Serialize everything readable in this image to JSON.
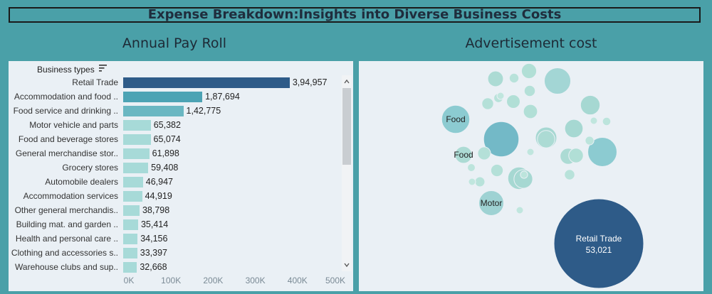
{
  "header": {
    "title": "Expense Breakdown:Insights into Diverse Business Costs"
  },
  "payroll": {
    "title": "Annual Pay Roll",
    "column_header": "Business types",
    "chart_data": {
      "type": "bar",
      "title": "Annual Pay Roll",
      "categories": [
        "Retail Trade",
        "Accommodation and food ..",
        "Food service and drinking ..",
        "Motor vehicle and parts",
        "Food and beverage stores",
        "General merchandise stor..",
        "Grocery stores",
        "Automobile dealers",
        "Accommodation services",
        "Other general merchandis..",
        "Building mat. and garden ..",
        "Health and personal care ..",
        "Clothing and accessories s..",
        "Warehouse clubs and sup.."
      ],
      "values": [
        394957,
        187694,
        142775,
        65382,
        65074,
        61898,
        59408,
        46947,
        44919,
        38798,
        35414,
        34156,
        33397,
        32668
      ],
      "labels": [
        "3,94,957",
        "1,87,694",
        "1,42,775",
        "65,382",
        "65,074",
        "61,898",
        "59,408",
        "46,947",
        "44,919",
        "38,798",
        "35,414",
        "34,156",
        "33,397",
        "32,668"
      ],
      "xlim": [
        0,
        500000
      ],
      "ticks": [
        "0K",
        "100K",
        "200K",
        "300K",
        "400K",
        "500K"
      ],
      "colors": [
        "#2e5b88",
        "#4ca3b4",
        "#6ab7c2",
        "#a7dad8"
      ]
    }
  },
  "advertisement": {
    "title": "Advertisement cost",
    "chart_data": {
      "type": "bubble",
      "title": "Advertisement cost",
      "bubbles": [
        {
          "label": "Retail Trade",
          "value_label": "53,021",
          "size": 53021,
          "color": "#2e5b88"
        },
        {
          "label": "",
          "size": 8200,
          "color": "#73b9c7"
        },
        {
          "label": "",
          "size": 5600,
          "color": "#8ccbd1"
        },
        {
          "label": "Food",
          "size": 5200,
          "color": "#8ccbd1"
        },
        {
          "label": "Motor",
          "size": 4100,
          "color": "#9ed2d3"
        },
        {
          "label": "",
          "size": 4600,
          "color": "#a3d6d5"
        },
        {
          "label": "",
          "size": 3300,
          "color": "#a6d8d2"
        },
        {
          "label": "",
          "size": 3000,
          "color": "#a6d8d2"
        },
        {
          "label": "",
          "size": 2500,
          "color": "#a6d8d2"
        },
        {
          "label": "",
          "size": 2300,
          "color": "#a6d8d2"
        },
        {
          "label": "",
          "size": 2200,
          "color": "#a6d8d2"
        },
        {
          "label": "",
          "size": 2000,
          "color": "#acdbd4"
        },
        {
          "label": "Food",
          "size": 1900,
          "color": "#acdbd4"
        },
        {
          "label": "",
          "size": 1700,
          "color": "#acdbd4"
        },
        {
          "label": "",
          "size": 1600,
          "color": "#acdbd4"
        },
        {
          "label": "",
          "size": 1500,
          "color": "#b1dfd6"
        },
        {
          "label": "",
          "size": 1400,
          "color": "#b1dfd6"
        },
        {
          "label": "",
          "size": 1300,
          "color": "#b1dfd6"
        },
        {
          "label": "",
          "size": 1200,
          "color": "#b1dfd6"
        },
        {
          "label": "",
          "size": 1100,
          "color": "#b4e0d8"
        },
        {
          "label": "",
          "size": 1000,
          "color": "#b4e0d8"
        },
        {
          "label": "",
          "size": 900,
          "color": "#b4e0d8"
        },
        {
          "label": "",
          "size": 800,
          "color": "#b4e0d8"
        },
        {
          "label": "",
          "size": 700,
          "color": "#b8e2da"
        },
        {
          "label": "",
          "size": 650,
          "color": "#b8e2da"
        },
        {
          "label": "",
          "size": 600,
          "color": "#b8e2da"
        },
        {
          "label": "",
          "size": 550,
          "color": "#b8e2da"
        },
        {
          "label": "",
          "size": 500,
          "color": "#bce4dc"
        },
        {
          "label": "",
          "size": 450,
          "color": "#bce4dc"
        },
        {
          "label": "",
          "size": 400,
          "color": "#bce4dc"
        },
        {
          "label": "",
          "size": 350,
          "color": "#bce4dc"
        },
        {
          "label": "",
          "size": 300,
          "color": "#c0e6de"
        },
        {
          "label": "",
          "size": 250,
          "color": "#c0e6de"
        },
        {
          "label": "",
          "size": 200,
          "color": "#c0e6de"
        },
        {
          "label": "",
          "size": 150,
          "color": "#c0e6de"
        },
        {
          "label": "",
          "size": 120,
          "color": "#c0e6de"
        }
      ]
    }
  }
}
